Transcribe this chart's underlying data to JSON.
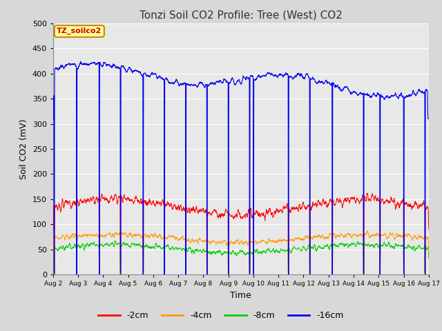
{
  "title": "Tonzi Soil CO2 Profile: Tree (West) CO2",
  "xlabel": "Time",
  "ylabel": "Soil CO2 (mV)",
  "ylim": [
    0,
    500
  ],
  "yticks": [
    0,
    50,
    100,
    150,
    200,
    250,
    300,
    350,
    400,
    450,
    500
  ],
  "legend_labels": [
    "-2cm",
    "-4cm",
    "-8cm",
    "-16cm"
  ],
  "legend_colors": [
    "#ff0000",
    "#ff9900",
    "#00cc00",
    "#0000ee"
  ],
  "annotation_text": "TZ_soilco2",
  "annotation_color": "#cc0000",
  "annotation_bg": "#ffff99",
  "annotation_border": "#cc8800",
  "fig_bg": "#d8d8d8",
  "plot_bg": "#e8e8e8",
  "n_days": 15,
  "start_day": 2,
  "title_fontsize": 11,
  "spike_positions": [
    0.05,
    0.95,
    1.85,
    2.7,
    3.6,
    4.45,
    5.3,
    6.15,
    7.0,
    7.85,
    8.0,
    9.4,
    10.25,
    11.15,
    12.4,
    13.05,
    14.0,
    14.85
  ],
  "ppd": 144
}
